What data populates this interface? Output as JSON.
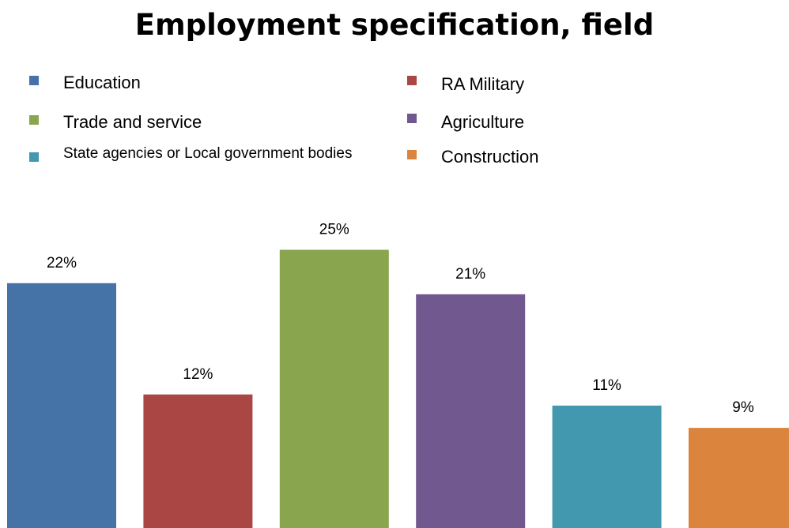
{
  "chart_data": {
    "type": "bar",
    "title": "Employment specification, field",
    "categories": [
      "Education",
      "RA Military",
      "Trade and service",
      "Agriculture",
      "State agencies or Local government bodies",
      "Construction"
    ],
    "values": [
      22,
      12,
      25,
      21,
      11,
      9
    ],
    "value_labels": [
      "22%",
      "12%",
      "25%",
      "21%",
      "11%",
      "9%"
    ],
    "colors": [
      "#4572A7",
      "#AA4643",
      "#89A54E",
      "#71588F",
      "#4198AF",
      "#DB843D"
    ],
    "unit": "%",
    "legend_position": "top",
    "grid": false,
    "xlabel": "",
    "ylabel": ""
  },
  "legend": [
    {
      "label": "Education",
      "color": "#4572A7"
    },
    {
      "label": "Trade and service",
      "color": "#89A54E"
    },
    {
      "label": "State agencies or Local government bodies",
      "color": "#4198AF"
    },
    {
      "label": "RA Military",
      "color": "#AA4643"
    },
    {
      "label": "Agriculture",
      "color": "#71588F"
    },
    {
      "label": "Construction",
      "color": "#DB843D"
    }
  ]
}
